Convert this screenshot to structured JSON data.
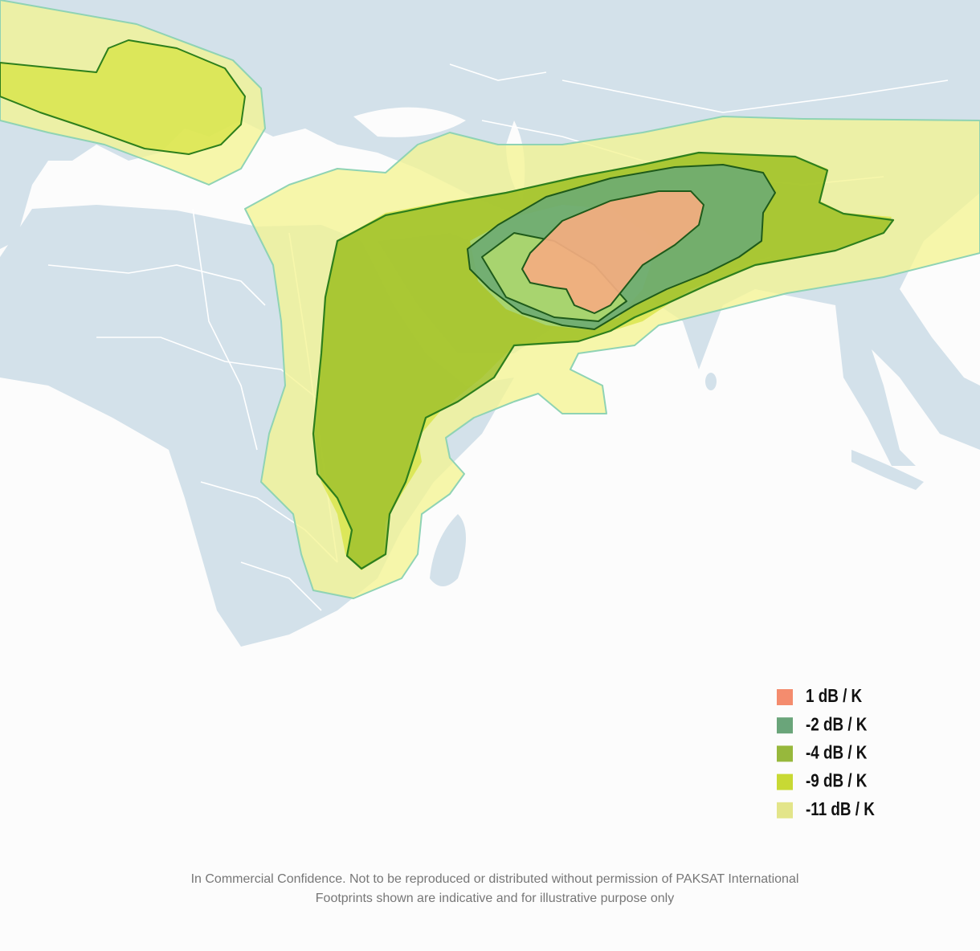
{
  "legend": {
    "items": [
      {
        "label": "1 dB / K",
        "color": "#f48c6e"
      },
      {
        "label": "-2 dB / K",
        "color": "#6aa57a"
      },
      {
        "label": "-4 dB / K",
        "color": "#97b83c"
      },
      {
        "label": "-9 dB / K",
        "color": "#c8d934"
      },
      {
        "label": "-11 dB / K",
        "color": "#e3e58a"
      }
    ]
  },
  "footer": {
    "lines": [
      "In Commercial Confidence. Not to be reproduced or distributed without permission of PAKSAT International",
      "Footprints shown are indicative and for illustrative purpose only"
    ]
  }
}
